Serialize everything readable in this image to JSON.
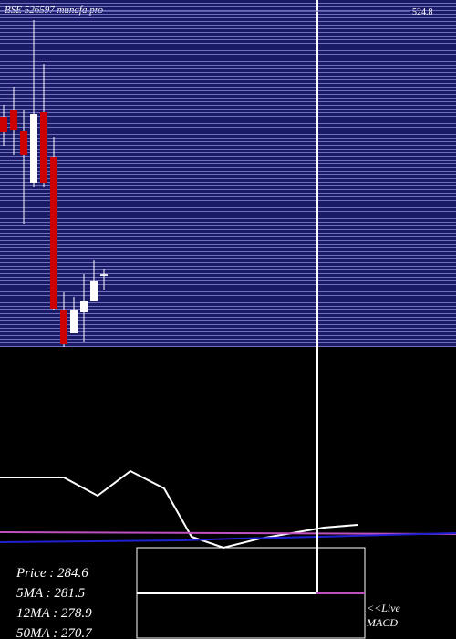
{
  "chart_data": {
    "type": "candlestick",
    "title": "BSE 526597 munafa.pro",
    "categories": [
      null,
      null,
      null,
      null,
      null,
      null,
      null,
      null,
      null,
      null,
      null
    ],
    "open": [
      428.2,
      434.9,
      415.7,
      368.2,
      432.4,
      391.5,
      251.4,
      230.5,
      249.7,
      259.7,
      283.1
    ],
    "high": [
      439.1,
      455.8,
      434.9,
      516.6,
      476.6,
      409.9,
      268.1,
      263.9,
      284.7,
      297.3,
      288.9
    ],
    "low": [
      401.5,
      393.2,
      330.6,
      364.0,
      364.0,
      251.4,
      218.0,
      230.5,
      222.2,
      259.7,
      269.7
    ],
    "close": [
      414.0,
      416.5,
      393.2,
      430.7,
      368.2,
      253.0,
      220.5,
      251.4,
      259.7,
      278.1,
      284.6
    ],
    "ylim": [
      218,
      535
    ],
    "yticks": [
      524.8
    ],
    "up_color": "#ffffff",
    "down_color": "#cc0000"
  },
  "info_lines": [
    "Price   : 284.6",
    "5MA : 281.5",
    "12MA : 278.9",
    "50MA : 270.7"
  ],
  "macd_link": [
    "<<Live",
    "MACD"
  ]
}
